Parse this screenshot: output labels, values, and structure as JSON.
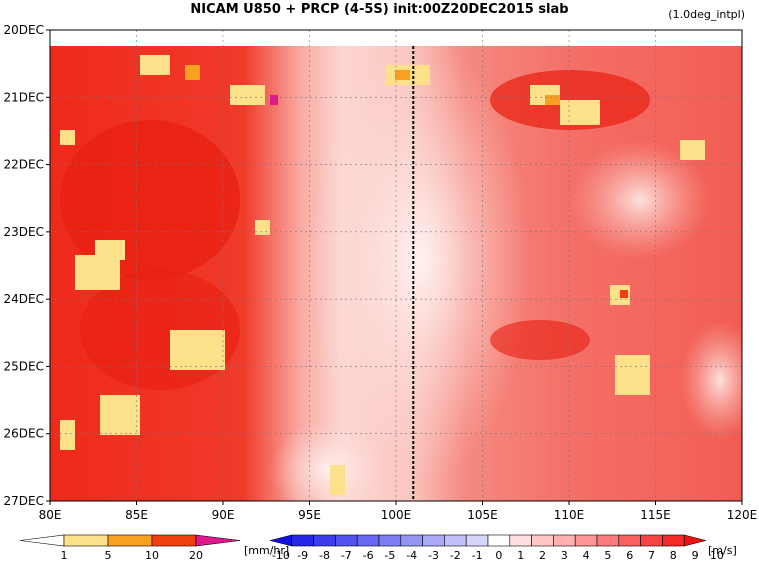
{
  "chart_data": {
    "type": "heatmap",
    "title": "NICAM   U850  +  PRCP  (4-5S)  init:00Z20DEC2015  slab",
    "note": "(1.0deg_intpl)",
    "x_ticks": [
      "80E",
      "85E",
      "90E",
      "95E",
      "100E",
      "105E",
      "110E",
      "115E",
      "120E"
    ],
    "x_values": [
      80,
      85,
      90,
      95,
      100,
      105,
      110,
      115,
      120
    ],
    "xlim": [
      80,
      120
    ],
    "y_ticks": [
      "20DEC",
      "21DEC",
      "22DEC",
      "23DEC",
      "24DEC",
      "25DEC",
      "26DEC",
      "27DEC"
    ],
    "y_values": [
      20,
      21,
      22,
      23,
      24,
      25,
      26,
      27
    ],
    "ylim": [
      20,
      27
    ],
    "y_direction": "down",
    "grid": true,
    "vertical_marker_lon": 101,
    "precip_colorbar": {
      "labels": [
        "1",
        "5",
        "10",
        "20"
      ],
      "colors": [
        "#ffffff",
        "#fde08a",
        "#f9a020",
        "#f04010",
        "#e01890"
      ],
      "units": "[mm/hr]"
    },
    "wind_colorbar": {
      "labels": [
        "-10",
        "-9",
        "-8",
        "-7",
        "-6",
        "-5",
        "-4",
        "-3",
        "-2",
        "-1",
        "0",
        "1",
        "2",
        "3",
        "4",
        "5",
        "6",
        "7",
        "8",
        "9",
        "10"
      ],
      "colors": [
        "#1010e0",
        "#2626e6",
        "#3c3ceb",
        "#5252ee",
        "#6868f0",
        "#7e7ef3",
        "#9494f5",
        "#aaaaf7",
        "#c0c0fa",
        "#d6d6fc",
        "#ffffff",
        "#ffe0e0",
        "#ffc8c8",
        "#ffb0b0",
        "#fd9696",
        "#fb7c7c",
        "#f96060",
        "#f64444",
        "#f22a2a",
        "#ef1010"
      ],
      "units": "[m/s]"
    },
    "regions": {
      "west_strong": {
        "lon": [
          80,
          93
        ],
        "u850_approx": 9
      },
      "central_weak": {
        "lon": [
          95,
          106
        ],
        "u850_approx": 2
      },
      "east_moderate": {
        "lon": [
          106,
          120
        ],
        "u850_approx": 6
      }
    }
  }
}
